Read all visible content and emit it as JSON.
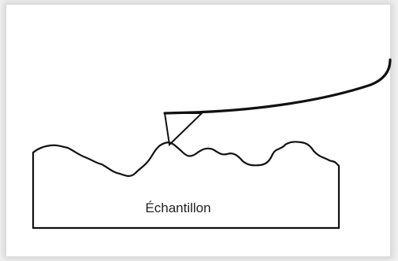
{
  "diagram": {
    "sample_label": "Échantillon",
    "stroke_color": "#111111",
    "background": "#ffffff"
  }
}
